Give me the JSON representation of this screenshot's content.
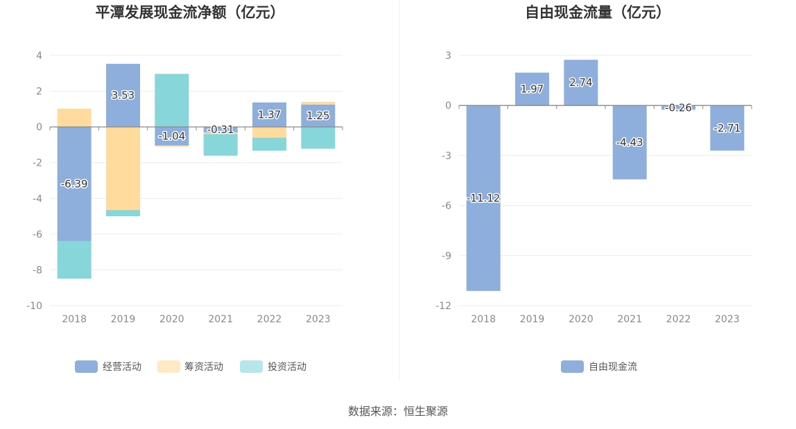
{
  "source_text": "数据来源：恒生聚源",
  "chart_data": [
    {
      "type": "bar",
      "stacked": true,
      "title": "平潭发展现金流净额（亿元）",
      "categories": [
        "2018",
        "2019",
        "2020",
        "2021",
        "2022",
        "2023"
      ],
      "ylim": [
        -10,
        4
      ],
      "yticks": [
        4,
        2,
        0,
        -2,
        -4,
        -6,
        -8,
        -10
      ],
      "grid": true,
      "legend_position": "bottom",
      "series": [
        {
          "name": "经营活动",
          "color": "#8eaedc",
          "values": [
            -6.39,
            3.53,
            -1.04,
            -0.31,
            1.37,
            1.25
          ],
          "show_labels": true
        },
        {
          "name": "筹资活动",
          "color": "#ffdc9e",
          "values": [
            1.02,
            -4.65,
            -0.06,
            -0.08,
            -0.6,
            0.15
          ],
          "show_labels": false
        },
        {
          "name": "投资活动",
          "color": "#86d6da",
          "values": [
            -2.1,
            -0.35,
            2.97,
            -1.22,
            -0.73,
            -1.22
          ],
          "show_labels": false
        }
      ]
    },
    {
      "type": "bar",
      "stacked": false,
      "title": "自由现金流量（亿元）",
      "categories": [
        "2018",
        "2019",
        "2020",
        "2021",
        "2022",
        "2023"
      ],
      "ylim": [
        -12,
        3
      ],
      "yticks": [
        3,
        0,
        -3,
        -6,
        -9,
        -12
      ],
      "grid": true,
      "legend_position": "bottom",
      "series": [
        {
          "name": "自由现金流",
          "color": "#8eaedc",
          "values": [
            -11.12,
            1.97,
            2.74,
            -4.43,
            -0.26,
            -2.71
          ],
          "show_labels": true
        }
      ]
    }
  ]
}
